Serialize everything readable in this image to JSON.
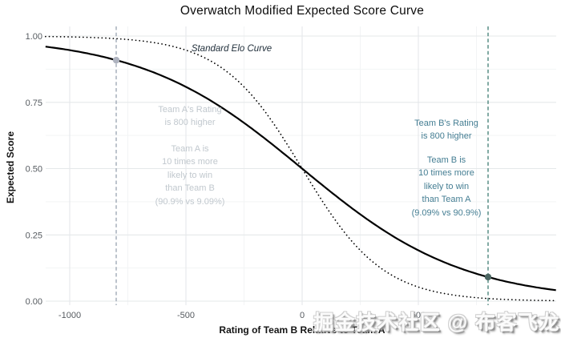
{
  "watermark": {
    "text": "掘金技术社区 @ 布客飞龙"
  },
  "chart_data": {
    "type": "line",
    "title": "Overwatch Modified Expected Score Curve",
    "xlabel": "Rating of Team B Relative to Team A",
    "ylabel": "Expected Score",
    "xlim": [
      -1100,
      1100
    ],
    "ylim": [
      0,
      1
    ],
    "grid": "on",
    "x_tick_values": [
      -1000,
      -500,
      0,
      500
    ],
    "x_tick_labels": [
      "-1000",
      "-500",
      "0",
      "500"
    ],
    "y_tick_values": [
      0,
      0.25,
      0.5,
      0.75,
      1
    ],
    "y_tick_labels": [
      "0.00",
      "0.25",
      "0.50",
      "0.75",
      "1.00"
    ],
    "minor_grid": {
      "x_minor": [
        -750,
        -250,
        250,
        750
      ],
      "y_minor": [
        0.125,
        0.375,
        0.625,
        0.875
      ]
    },
    "series": [
      {
        "name": "Overwatch Modified Expected Score Curve",
        "line_style": "solid",
        "color": "#000000",
        "formula": "E = 1 / (1 + 10^(x/800))",
        "divisor": 800,
        "sample_points": [
          {
            "x": -800,
            "y": 0.909
          },
          {
            "x": -400,
            "y": 0.76
          },
          {
            "x": 0,
            "y": 0.5
          },
          {
            "x": 400,
            "y": 0.24
          },
          {
            "x": 800,
            "y": 0.0909
          }
        ]
      },
      {
        "name": "Standard Elo Curve",
        "line_style": "dotted",
        "color": "#000000",
        "formula": "E = 1 / (1 + 10^(x/400))",
        "divisor": 400,
        "sample_points": [
          {
            "x": -800,
            "y": 0.99
          },
          {
            "x": -400,
            "y": 0.909
          },
          {
            "x": 0,
            "y": 0.5
          },
          {
            "x": 400,
            "y": 0.0909
          },
          {
            "x": 800,
            "y": 0.0099
          }
        ]
      }
    ],
    "reference_lines": [
      {
        "x": -800,
        "color": "#99a3b0",
        "style": "dashed"
      },
      {
        "x": 800,
        "color": "#3e7c72",
        "style": "dashed"
      }
    ],
    "points": [
      {
        "x": -800,
        "y": 0.909,
        "color": "#aeb3bf"
      },
      {
        "x": 800,
        "y": 0.0909,
        "color": "#4c6662"
      }
    ],
    "annotations": [
      {
        "id": "std-elo-label",
        "italic": true,
        "color": "#22303c",
        "lines": [
          "Standard Elo Curve"
        ]
      },
      {
        "id": "team-a-rating",
        "italic": false,
        "color": "#c1c8ce",
        "lines": [
          "Team A's Rating",
          "is 800 higher"
        ]
      },
      {
        "id": "team-a-odds",
        "italic": false,
        "color": "#c1c8ce",
        "lines": [
          "Team A is",
          "10 times more",
          "likely to win",
          "than Team B",
          "(90.9% vs 9.09%)"
        ]
      },
      {
        "id": "team-b-rating",
        "italic": false,
        "color": "#457e93",
        "lines": [
          "Team B's Rating",
          "is 800 higher"
        ]
      },
      {
        "id": "team-b-odds",
        "italic": false,
        "color": "#457e93",
        "lines": [
          "Team B is",
          "10 times more",
          "likely to win",
          "than Team A",
          "(9.09% vs 90.9%)"
        ]
      }
    ]
  }
}
